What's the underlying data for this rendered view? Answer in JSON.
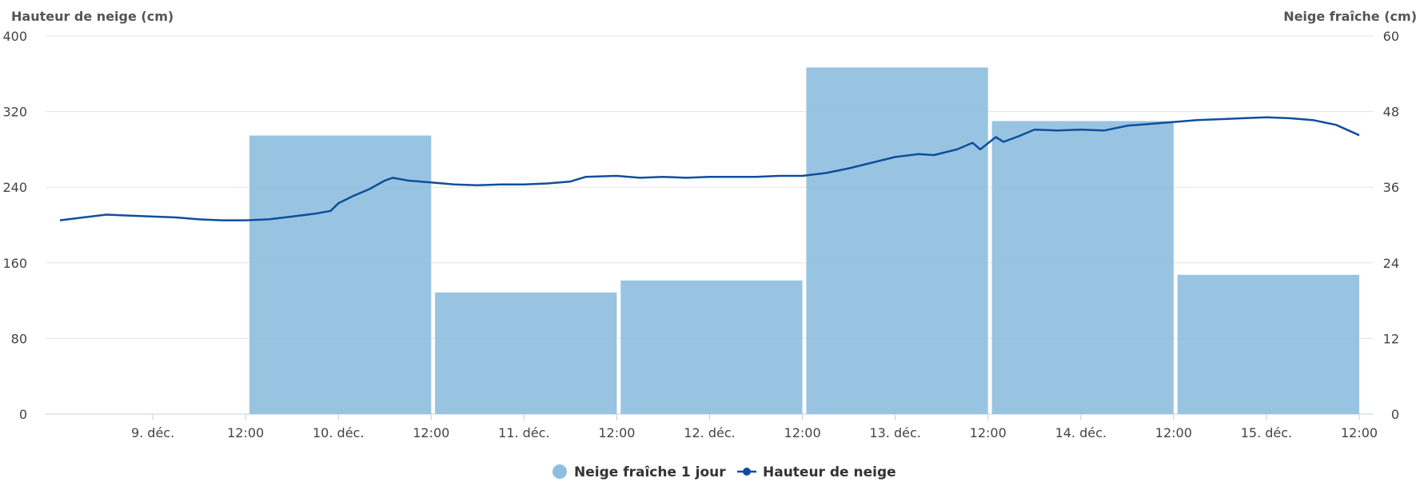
{
  "chart_data": {
    "type": "bar+line",
    "left_axis": {
      "title": "Hauteur de neige (cm)",
      "ticks": [
        "0",
        "80",
        "160",
        "240",
        "320",
        "400"
      ],
      "range": [
        0,
        400
      ]
    },
    "right_axis": {
      "title": "Neige fraîche (cm)",
      "ticks": [
        "0",
        "12",
        "24",
        "36",
        "48",
        "60"
      ],
      "range": [
        0,
        60
      ]
    },
    "x_axis": {
      "unit": "hours since 8 déc. 12:00",
      "range": [
        0,
        168
      ],
      "ticks": [
        {
          "t": 12,
          "label": "9. déc."
        },
        {
          "t": 24,
          "label": "12:00"
        },
        {
          "t": 36,
          "label": "10. déc."
        },
        {
          "t": 48,
          "label": "12:00"
        },
        {
          "t": 60,
          "label": "11. déc."
        },
        {
          "t": 72,
          "label": "12:00"
        },
        {
          "t": 84,
          "label": "12. déc."
        },
        {
          "t": 96,
          "label": "12:00"
        },
        {
          "t": 108,
          "label": "13. déc."
        },
        {
          "t": 120,
          "label": "12:00"
        },
        {
          "t": 132,
          "label": "14. déc."
        },
        {
          "t": 144,
          "label": "12:00"
        },
        {
          "t": 156,
          "label": "15. déc."
        },
        {
          "t": 168,
          "label": "12:00"
        }
      ]
    },
    "grid": true,
    "legend_position": "bottom-center",
    "series": [
      {
        "name": "Neige fraîche 1 jour",
        "type": "bar",
        "axis": "right",
        "color": "#8fbfdf",
        "bars": [
          {
            "start": 24.5,
            "end": 48,
            "value": 44.2
          },
          {
            "start": 48.5,
            "end": 72,
            "value": 19.3
          },
          {
            "start": 72.5,
            "end": 96,
            "value": 21.2
          },
          {
            "start": 96.5,
            "end": 120,
            "value": 55
          },
          {
            "start": 120.5,
            "end": 144,
            "value": 46.5
          },
          {
            "start": 144.5,
            "end": 168,
            "value": 22.1
          }
        ]
      },
      {
        "name": "Hauteur de neige",
        "type": "line",
        "axis": "left",
        "color": "#0e4f9c",
        "points": [
          [
            0,
            205
          ],
          [
            3,
            208
          ],
          [
            6,
            211
          ],
          [
            9,
            210
          ],
          [
            12,
            209
          ],
          [
            15,
            208
          ],
          [
            18,
            206
          ],
          [
            21,
            205
          ],
          [
            24,
            205
          ],
          [
            27,
            206
          ],
          [
            30,
            209
          ],
          [
            33,
            212
          ],
          [
            35,
            215
          ],
          [
            36,
            223
          ],
          [
            38,
            231
          ],
          [
            40,
            238
          ],
          [
            42,
            247
          ],
          [
            43,
            250
          ],
          [
            45,
            247
          ],
          [
            48,
            245
          ],
          [
            51,
            243
          ],
          [
            54,
            242
          ],
          [
            57,
            243
          ],
          [
            60,
            243
          ],
          [
            63,
            244
          ],
          [
            66,
            246
          ],
          [
            68,
            251
          ],
          [
            72,
            252
          ],
          [
            75,
            250
          ],
          [
            78,
            251
          ],
          [
            81,
            250
          ],
          [
            84,
            251
          ],
          [
            87,
            251
          ],
          [
            90,
            251
          ],
          [
            93,
            252
          ],
          [
            96,
            252
          ],
          [
            99,
            255
          ],
          [
            102,
            260
          ],
          [
            105,
            266
          ],
          [
            108,
            272
          ],
          [
            111,
            275
          ],
          [
            113,
            274
          ],
          [
            116,
            280
          ],
          [
            118,
            287
          ],
          [
            119,
            280
          ],
          [
            121,
            293
          ],
          [
            122,
            288
          ],
          [
            124,
            294
          ],
          [
            126,
            301
          ],
          [
            129,
            300
          ],
          [
            132,
            301
          ],
          [
            135,
            300
          ],
          [
            138,
            305
          ],
          [
            141,
            307
          ],
          [
            144,
            309
          ],
          [
            147,
            311
          ],
          [
            150,
            312
          ],
          [
            153,
            313
          ],
          [
            156,
            314
          ],
          [
            159,
            313
          ],
          [
            162,
            311
          ],
          [
            165,
            306
          ],
          [
            168,
            295
          ]
        ]
      }
    ]
  }
}
